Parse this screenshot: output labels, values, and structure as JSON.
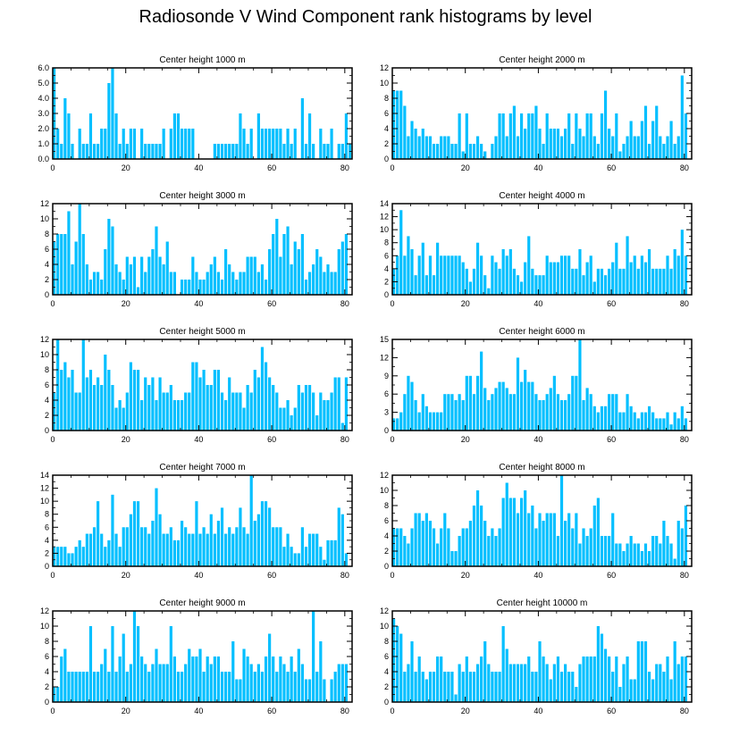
{
  "title": "Radiosonde V Wind Component rank histograms by level",
  "bar_color": "#00bfff",
  "chart_data": [
    {
      "type": "bar",
      "title": "Center height 1000 m",
      "xlim": [
        0,
        82
      ],
      "ylim": [
        0,
        6
      ],
      "x_ticks": [
        0,
        20,
        40,
        60,
        80
      ],
      "y_ticks": [
        0,
        1,
        2,
        3,
        4,
        5,
        6
      ],
      "y_tick_labels": [
        "0.0",
        "1.0",
        "2.0",
        "3.0",
        "4.0",
        "5.0",
        "6.0"
      ],
      "values": [
        6,
        2,
        1,
        4,
        3,
        1,
        0,
        2,
        1,
        1,
        3,
        1,
        1,
        2,
        2,
        5,
        6,
        3,
        1,
        2,
        1,
        2,
        2,
        0,
        2,
        1,
        1,
        1,
        1,
        1,
        2,
        0,
        2,
        3,
        3,
        2,
        2,
        2,
        2,
        0,
        0,
        0,
        0,
        0,
        1,
        1,
        1,
        1,
        1,
        1,
        1,
        3,
        2,
        1,
        2,
        0,
        3,
        2,
        2,
        2,
        2,
        2,
        2,
        1,
        2,
        1,
        2,
        0,
        4,
        1,
        3,
        1,
        0,
        2,
        1,
        1,
        2,
        0,
        1,
        1,
        3,
        1
      ]
    },
    {
      "type": "bar",
      "title": "Center height 2000 m",
      "xlim": [
        0,
        82
      ],
      "ylim": [
        0,
        12
      ],
      "x_ticks": [
        0,
        20,
        40,
        60,
        80
      ],
      "y_ticks": [
        0,
        2,
        4,
        6,
        8,
        10,
        12
      ],
      "y_tick_labels": [
        "0",
        "2",
        "4",
        "6",
        "8",
        "10",
        "12"
      ],
      "values": [
        9,
        9,
        9,
        7,
        3,
        5,
        4,
        3,
        4,
        3,
        3,
        2,
        2,
        3,
        3,
        3,
        2,
        2,
        6,
        1,
        6,
        2,
        2,
        3,
        2,
        1,
        0,
        2,
        3,
        6,
        6,
        3,
        6,
        7,
        3,
        6,
        4,
        6,
        6,
        7,
        4,
        2,
        6,
        4,
        4,
        4,
        3,
        4,
        6,
        2,
        6,
        4,
        3,
        6,
        6,
        3,
        2,
        6,
        9,
        4,
        3,
        6,
        1,
        2,
        3,
        5,
        3,
        3,
        5,
        7,
        2,
        5,
        7,
        3,
        2,
        3,
        5,
        2,
        3,
        11,
        6
      ]
    },
    {
      "type": "bar",
      "title": "Center height 3000 m",
      "xlim": [
        0,
        82
      ],
      "ylim": [
        0,
        12
      ],
      "x_ticks": [
        0,
        20,
        40,
        60,
        80
      ],
      "y_ticks": [
        0,
        2,
        4,
        6,
        8,
        10,
        12
      ],
      "y_tick_labels": [
        "0",
        "2",
        "4",
        "6",
        "8",
        "10",
        "12"
      ],
      "values": [
        7,
        8,
        8,
        8,
        11,
        4,
        7,
        12,
        8,
        4,
        2,
        3,
        3,
        2,
        6,
        10,
        9,
        4,
        3,
        2,
        5,
        4,
        5,
        1,
        5,
        3,
        5,
        6,
        9,
        5,
        4,
        7,
        3,
        3,
        0,
        2,
        2,
        2,
        5,
        3,
        2,
        2,
        3,
        4,
        5,
        3,
        2,
        6,
        4,
        3,
        2,
        3,
        3,
        5,
        5,
        5,
        3,
        4,
        2,
        6,
        8,
        10,
        5,
        8,
        9,
        4,
        7,
        6,
        8,
        2,
        3,
        4,
        6,
        5,
        3,
        4,
        3,
        3,
        6,
        7,
        8
      ]
    },
    {
      "type": "bar",
      "title": "Center height 4000 m",
      "xlim": [
        0,
        82
      ],
      "ylim": [
        0,
        14
      ],
      "x_ticks": [
        0,
        20,
        40,
        60,
        80
      ],
      "y_ticks": [
        0,
        2,
        4,
        6,
        8,
        10,
        12,
        14
      ],
      "y_tick_labels": [
        "0",
        "2",
        "4",
        "6",
        "8",
        "10",
        "12",
        "14"
      ],
      "values": [
        4,
        6,
        13,
        6,
        9,
        7,
        3,
        6,
        8,
        3,
        6,
        3,
        8,
        6,
        6,
        6,
        6,
        6,
        6,
        5,
        4,
        2,
        4,
        8,
        6,
        3,
        1,
        6,
        5,
        4,
        7,
        6,
        7,
        4,
        3,
        2,
        5,
        9,
        4,
        3,
        3,
        3,
        6,
        5,
        5,
        5,
        6,
        6,
        6,
        4,
        4,
        7,
        3,
        5,
        6,
        2,
        4,
        4,
        3,
        4,
        5,
        8,
        4,
        4,
        9,
        5,
        6,
        4,
        6,
        5,
        7,
        4,
        4,
        4,
        4,
        6,
        4,
        7,
        6,
        10,
        6
      ]
    },
    {
      "type": "bar",
      "title": "Center height 5000 m",
      "xlim": [
        0,
        82
      ],
      "ylim": [
        0,
        12
      ],
      "x_ticks": [
        0,
        20,
        40,
        60,
        80
      ],
      "y_ticks": [
        0,
        2,
        4,
        6,
        8,
        10,
        12
      ],
      "y_tick_labels": [
        "0",
        "2",
        "4",
        "6",
        "8",
        "10",
        "12"
      ],
      "values": [
        5,
        12,
        8,
        9,
        7,
        8,
        5,
        5,
        12,
        7,
        8,
        6,
        7,
        6,
        10,
        8,
        6,
        3,
        4,
        3,
        5,
        9,
        8,
        8,
        4,
        7,
        6,
        7,
        4,
        7,
        5,
        5,
        6,
        4,
        4,
        4,
        5,
        5,
        9,
        9,
        7,
        8,
        6,
        6,
        8,
        8,
        5,
        4,
        7,
        5,
        5,
        5,
        3,
        6,
        5,
        8,
        7,
        11,
        9,
        7,
        6,
        5,
        3,
        3,
        4,
        2,
        3,
        6,
        5,
        6,
        6,
        5,
        2,
        5,
        4,
        4,
        5,
        7,
        7,
        1,
        7
      ]
    },
    {
      "type": "bar",
      "title": "Center height 6000 m",
      "xlim": [
        0,
        82
      ],
      "ylim": [
        0,
        15
      ],
      "x_ticks": [
        0,
        20,
        40,
        60,
        80
      ],
      "y_ticks": [
        0,
        3,
        6,
        9,
        12,
        15
      ],
      "y_tick_labels": [
        "0",
        "3",
        "6",
        "9",
        "12",
        "15"
      ],
      "values": [
        2,
        2,
        3,
        6,
        9,
        8,
        5,
        3,
        6,
        4,
        3,
        3,
        3,
        3,
        6,
        6,
        6,
        5,
        6,
        5,
        9,
        9,
        6,
        9,
        13,
        7,
        5,
        6,
        7,
        8,
        8,
        7,
        6,
        6,
        12,
        8,
        10,
        8,
        8,
        6,
        5,
        5,
        6,
        7,
        9,
        6,
        5,
        5,
        6,
        9,
        9,
        15,
        5,
        7,
        6,
        4,
        3,
        4,
        4,
        6,
        6,
        6,
        3,
        3,
        6,
        4,
        3,
        2,
        3,
        3,
        4,
        3,
        2,
        2,
        2,
        3,
        1,
        3,
        2,
        4,
        2
      ]
    },
    {
      "type": "bar",
      "title": "Center height 7000 m",
      "xlim": [
        0,
        82
      ],
      "ylim": [
        0,
        14
      ],
      "x_ticks": [
        0,
        20,
        40,
        60,
        80
      ],
      "y_ticks": [
        0,
        2,
        4,
        6,
        8,
        10,
        12,
        14
      ],
      "y_tick_labels": [
        "0",
        "2",
        "4",
        "6",
        "8",
        "10",
        "12",
        "14"
      ],
      "values": [
        3,
        3,
        3,
        3,
        2,
        2,
        3,
        4,
        3,
        5,
        5,
        6,
        10,
        5,
        3,
        4,
        11,
        5,
        3,
        6,
        6,
        8,
        10,
        10,
        6,
        6,
        5,
        7,
        12,
        8,
        5,
        5,
        6,
        4,
        4,
        7,
        6,
        5,
        5,
        10,
        5,
        6,
        5,
        8,
        5,
        7,
        9,
        5,
        6,
        5,
        6,
        9,
        6,
        5,
        14,
        7,
        8,
        10,
        10,
        9,
        6,
        6,
        6,
        3,
        5,
        3,
        2,
        2,
        6,
        3,
        5,
        5,
        5,
        3,
        1,
        4,
        4,
        4,
        9,
        8,
        2
      ]
    },
    {
      "type": "bar",
      "title": "Center height 8000 m",
      "xlim": [
        0,
        82
      ],
      "ylim": [
        0,
        12
      ],
      "x_ticks": [
        0,
        20,
        40,
        60,
        80
      ],
      "y_ticks": [
        0,
        2,
        4,
        6,
        8,
        10,
        12
      ],
      "y_tick_labels": [
        "0",
        "2",
        "4",
        "6",
        "8",
        "10",
        "12"
      ],
      "values": [
        5,
        5,
        5,
        4,
        3,
        5,
        7,
        7,
        6,
        7,
        6,
        5,
        3,
        5,
        7,
        5,
        2,
        2,
        4,
        5,
        5,
        6,
        8,
        10,
        8,
        6,
        4,
        5,
        4,
        5,
        9,
        11,
        9,
        9,
        7,
        9,
        10,
        7,
        8,
        5,
        7,
        6,
        7,
        7,
        7,
        4,
        12,
        6,
        7,
        5,
        7,
        3,
        5,
        4,
        5,
        8,
        9,
        4,
        4,
        4,
        7,
        3,
        3,
        2,
        3,
        4,
        3,
        3,
        2,
        3,
        2,
        4,
        4,
        3,
        6,
        4,
        3,
        1,
        6,
        5,
        8
      ]
    },
    {
      "type": "bar",
      "title": "Center height 9000 m",
      "xlim": [
        0,
        82
      ],
      "ylim": [
        0,
        12
      ],
      "x_ticks": [
        0,
        20,
        40,
        60,
        80
      ],
      "y_ticks": [
        0,
        2,
        4,
        6,
        8,
        10,
        12
      ],
      "y_tick_labels": [
        "0",
        "2",
        "4",
        "6",
        "8",
        "10",
        "12"
      ],
      "values": [
        2,
        2,
        6,
        7,
        4,
        4,
        4,
        4,
        4,
        4,
        10,
        4,
        4,
        5,
        7,
        4,
        10,
        4,
        6,
        9,
        4,
        5,
        12,
        10,
        6,
        5,
        4,
        5,
        7,
        5,
        5,
        5,
        10,
        6,
        4,
        4,
        5,
        7,
        6,
        6,
        7,
        4,
        6,
        5,
        6,
        6,
        4,
        4,
        4,
        8,
        3,
        3,
        7,
        6,
        5,
        4,
        5,
        4,
        6,
        9,
        6,
        4,
        6,
        5,
        4,
        6,
        4,
        7,
        5,
        3,
        3,
        12,
        4,
        8,
        3,
        0,
        3,
        4,
        5,
        5,
        5
      ]
    },
    {
      "type": "bar",
      "title": "Center height 10000 m",
      "xlim": [
        0,
        82
      ],
      "ylim": [
        0,
        12
      ],
      "x_ticks": [
        0,
        20,
        40,
        60,
        80
      ],
      "y_ticks": [
        0,
        2,
        4,
        6,
        8,
        10,
        12
      ],
      "y_tick_labels": [
        "0",
        "2",
        "4",
        "6",
        "8",
        "10",
        "12"
      ],
      "values": [
        11,
        10,
        9,
        4,
        5,
        8,
        4,
        6,
        4,
        3,
        4,
        4,
        6,
        6,
        4,
        4,
        4,
        1,
        5,
        4,
        6,
        4,
        4,
        5,
        6,
        8,
        5,
        4,
        4,
        4,
        10,
        7,
        5,
        5,
        5,
        5,
        5,
        6,
        4,
        4,
        8,
        6,
        5,
        3,
        5,
        6,
        4,
        5,
        4,
        4,
        2,
        5,
        6,
        6,
        6,
        6,
        10,
        9,
        7,
        6,
        4,
        6,
        2,
        5,
        6,
        3,
        3,
        8,
        8,
        8,
        4,
        3,
        5,
        5,
        4,
        6,
        3,
        8,
        5,
        6,
        6
      ]
    }
  ]
}
